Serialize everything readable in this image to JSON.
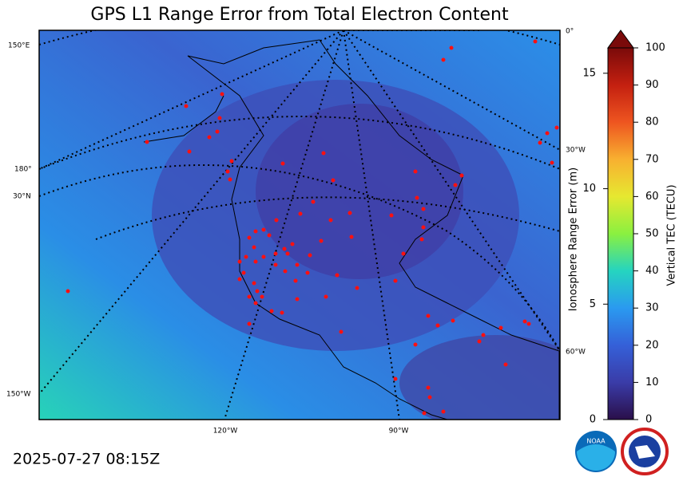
{
  "title": "GPS L1 Range Error from Total Electron Content",
  "timestamp": "2025-07-27 08:15Z",
  "map": {
    "grid_labels": [
      "150°E",
      "180°",
      "30°N",
      "150°W",
      "120°W",
      "90°W",
      "60°W",
      "30°W",
      "0°"
    ]
  },
  "colorbar": {
    "left_label": "Ionosphere Range Error (m)",
    "right_label": "Vertical TEC (TECU)",
    "tec_lim": [
      0,
      100
    ],
    "tec_ticks": [
      0,
      10,
      20,
      30,
      40,
      50,
      60,
      70,
      80,
      90,
      100
    ],
    "range_lim": [
      0,
      16.1
    ],
    "range_ticks": [
      0,
      5,
      10,
      15
    ]
  }
}
